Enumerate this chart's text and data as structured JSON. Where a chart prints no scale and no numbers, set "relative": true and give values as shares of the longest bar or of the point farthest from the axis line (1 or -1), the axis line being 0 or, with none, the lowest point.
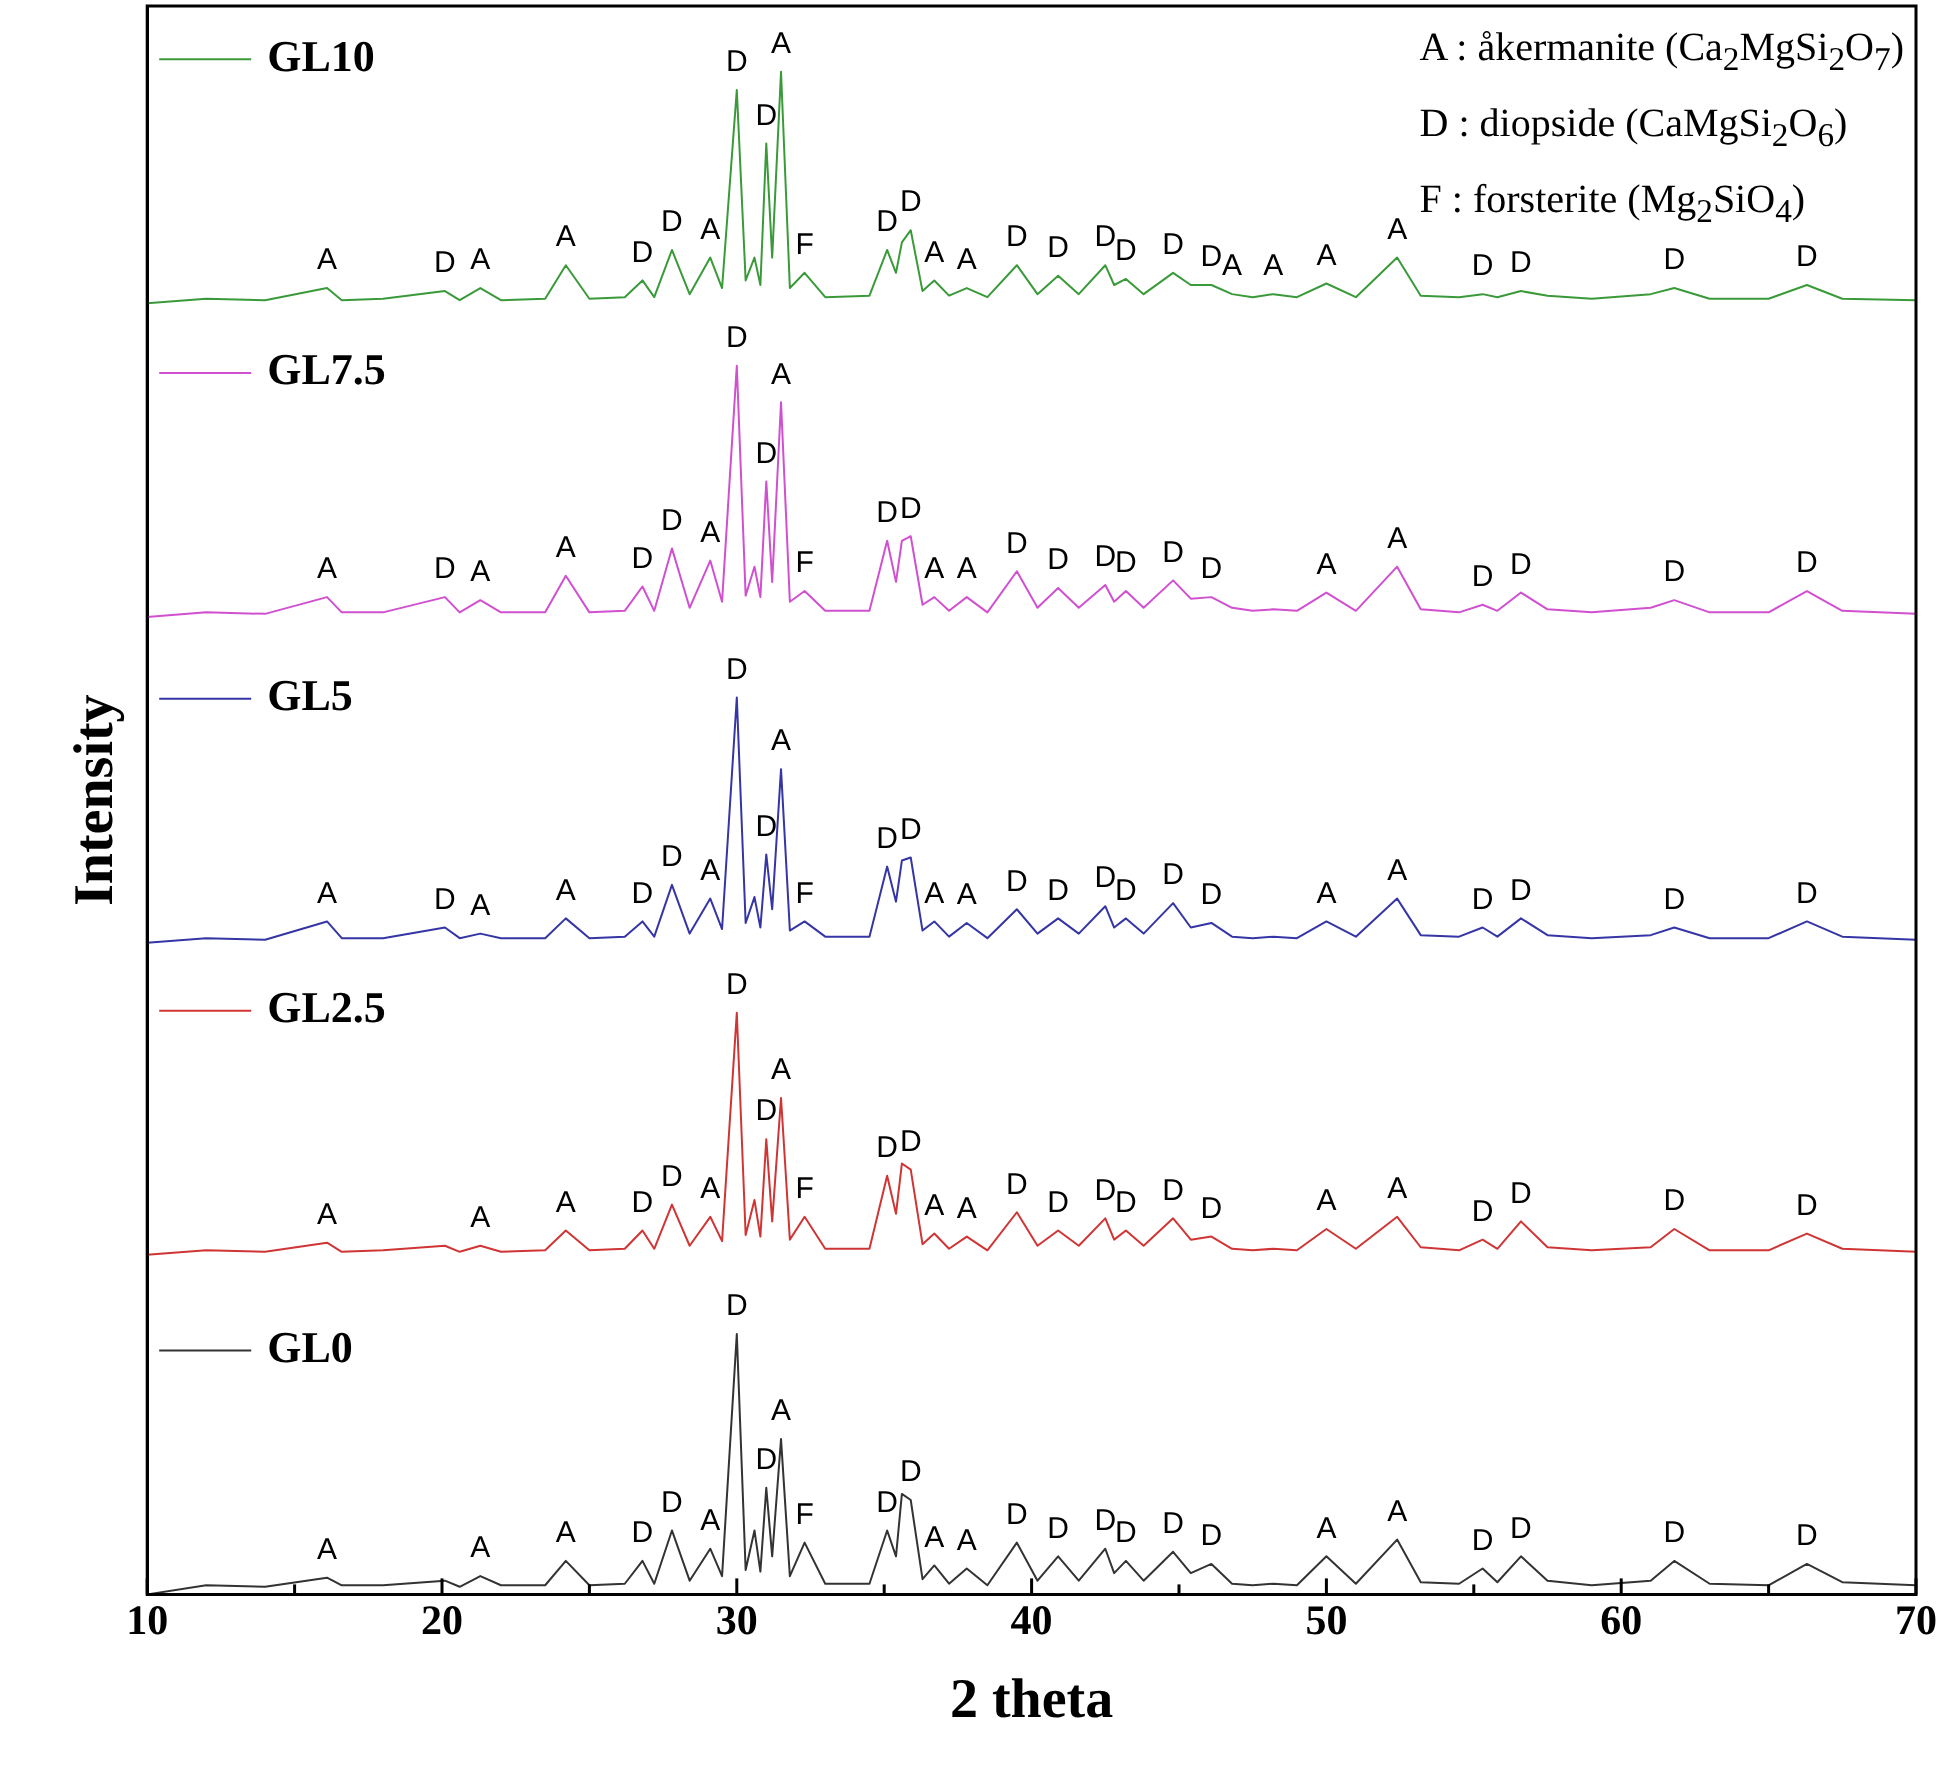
{
  "chart_data": {
    "type": "line",
    "relative": true,
    "xlabel": "2 theta",
    "ylabel": "Intensity",
    "xlim": [
      10,
      70
    ],
    "xticks": [
      10,
      {
        "value": 15,
        "label": null
      },
      20,
      {
        "value": 25,
        "label": null
      },
      30,
      {
        "value": 35,
        "label": null
      },
      40,
      {
        "value": 45,
        "label": null
      },
      50,
      {
        "value": 55,
        "label": null
      },
      60,
      {
        "value": 65,
        "label": null
      },
      70
    ],
    "marker": "none",
    "line_style": "solid",
    "x": [
      10,
      12,
      14,
      16.1,
      16.6,
      18,
      20.1,
      20.6,
      21.3,
      22,
      23.5,
      24.2,
      25,
      26.2,
      26.8,
      27.2,
      27.8,
      28.4,
      29.1,
      29.5,
      30.0,
      30.3,
      30.6,
      30.8,
      31.0,
      31.2,
      31.5,
      31.8,
      32.3,
      33,
      34.5,
      35.1,
      35.4,
      35.6,
      35.9,
      36.3,
      36.7,
      37.2,
      37.8,
      38.5,
      39.5,
      40.2,
      40.9,
      41.6,
      42.5,
      42.8,
      43.2,
      43.8,
      44.8,
      45.4,
      46.1,
      46.8,
      47.5,
      48.2,
      49,
      50.0,
      51,
      52.4,
      53.2,
      54.5,
      55.3,
      55.8,
      56.6,
      57.5,
      59,
      61,
      61.8,
      63,
      65,
      66.3,
      67.5,
      70
    ],
    "series": [
      {
        "name": "GL10",
        "color": "#3a9a3a",
        "values": [
          0.848,
          0.851,
          0.85,
          0.858,
          0.85,
          0.851,
          0.856,
          0.85,
          0.858,
          0.85,
          0.851,
          0.873,
          0.851,
          0.852,
          0.863,
          0.852,
          0.883,
          0.854,
          0.878,
          0.858,
          0.988,
          0.863,
          0.878,
          0.86,
          0.953,
          0.878,
          1.0,
          0.858,
          0.868,
          0.852,
          0.853,
          0.883,
          0.868,
          0.888,
          0.896,
          0.856,
          0.863,
          0.853,
          0.858,
          0.852,
          0.873,
          0.854,
          0.866,
          0.854,
          0.873,
          0.86,
          0.864,
          0.854,
          0.868,
          0.86,
          0.86,
          0.854,
          0.852,
          0.854,
          0.852,
          0.861,
          0.852,
          0.878,
          0.853,
          0.852,
          0.854,
          0.852,
          0.856,
          0.853,
          0.851,
          0.854,
          0.858,
          0.851,
          0.851,
          0.86,
          0.851,
          0.85
        ]
      },
      {
        "name": "GL7.5",
        "color": "#d050d0",
        "values": [
          0.642,
          0.645,
          0.644,
          0.655,
          0.645,
          0.645,
          0.655,
          0.645,
          0.653,
          0.645,
          0.645,
          0.669,
          0.645,
          0.646,
          0.662,
          0.646,
          0.687,
          0.648,
          0.679,
          0.652,
          0.807,
          0.656,
          0.675,
          0.655,
          0.731,
          0.665,
          0.783,
          0.652,
          0.659,
          0.646,
          0.646,
          0.692,
          0.665,
          0.692,
          0.695,
          0.65,
          0.655,
          0.646,
          0.655,
          0.645,
          0.672,
          0.648,
          0.661,
          0.648,
          0.663,
          0.652,
          0.659,
          0.648,
          0.666,
          0.654,
          0.655,
          0.648,
          0.646,
          0.647,
          0.646,
          0.658,
          0.646,
          0.675,
          0.647,
          0.645,
          0.65,
          0.646,
          0.658,
          0.647,
          0.645,
          0.648,
          0.653,
          0.645,
          0.645,
          0.659,
          0.646,
          0.644
        ]
      },
      {
        "name": "GL5",
        "color": "#3535a5",
        "values": [
          0.428,
          0.431,
          0.43,
          0.442,
          0.431,
          0.431,
          0.438,
          0.431,
          0.434,
          0.431,
          0.431,
          0.444,
          0.431,
          0.432,
          0.442,
          0.432,
          0.466,
          0.434,
          0.457,
          0.437,
          0.589,
          0.441,
          0.458,
          0.438,
          0.486,
          0.45,
          0.542,
          0.436,
          0.442,
          0.432,
          0.432,
          0.478,
          0.455,
          0.482,
          0.484,
          0.436,
          0.442,
          0.432,
          0.441,
          0.431,
          0.45,
          0.434,
          0.444,
          0.434,
          0.452,
          0.438,
          0.444,
          0.434,
          0.454,
          0.438,
          0.441,
          0.432,
          0.431,
          0.432,
          0.431,
          0.442,
          0.432,
          0.457,
          0.433,
          0.432,
          0.438,
          0.432,
          0.444,
          0.433,
          0.431,
          0.433,
          0.438,
          0.431,
          0.431,
          0.442,
          0.432,
          0.43
        ]
      },
      {
        "name": "GL2.5",
        "color": "#d03535",
        "values": [
          0.223,
          0.226,
          0.225,
          0.231,
          0.225,
          0.226,
          0.229,
          0.225,
          0.229,
          0.225,
          0.226,
          0.239,
          0.226,
          0.227,
          0.239,
          0.227,
          0.256,
          0.229,
          0.248,
          0.232,
          0.382,
          0.236,
          0.259,
          0.235,
          0.299,
          0.245,
          0.326,
          0.233,
          0.248,
          0.227,
          0.227,
          0.275,
          0.25,
          0.283,
          0.279,
          0.23,
          0.237,
          0.227,
          0.235,
          0.226,
          0.251,
          0.229,
          0.239,
          0.229,
          0.247,
          0.233,
          0.239,
          0.229,
          0.247,
          0.233,
          0.235,
          0.227,
          0.226,
          0.227,
          0.226,
          0.24,
          0.227,
          0.248,
          0.228,
          0.226,
          0.233,
          0.227,
          0.245,
          0.228,
          0.226,
          0.228,
          0.24,
          0.226,
          0.226,
          0.237,
          0.227,
          0.225
        ]
      },
      {
        "name": "GL0",
        "color": "#333333",
        "values": [
          0,
          0.006,
          0.005,
          0.011,
          0.006,
          0.006,
          0.009,
          0.005,
          0.012,
          0.006,
          0.006,
          0.022,
          0.006,
          0.007,
          0.022,
          0.007,
          0.042,
          0.009,
          0.03,
          0.012,
          0.171,
          0.016,
          0.042,
          0.015,
          0.07,
          0.025,
          0.102,
          0.012,
          0.034,
          0.007,
          0.007,
          0.042,
          0.025,
          0.066,
          0.062,
          0.01,
          0.019,
          0.007,
          0.017,
          0.006,
          0.034,
          0.009,
          0.025,
          0.009,
          0.03,
          0.014,
          0.022,
          0.009,
          0.028,
          0.014,
          0.02,
          0.007,
          0.006,
          0.007,
          0.006,
          0.025,
          0.007,
          0.036,
          0.008,
          0.007,
          0.017,
          0.008,
          0.025,
          0.009,
          0.006,
          0.009,
          0.022,
          0.007,
          0.006,
          0.02,
          0.008,
          0.006
        ]
      }
    ],
    "annotations": [
      "A : åkermanite (Ca$_{2}$MgSi$_{2}$O$_{7}$)",
      "D : diopside (CaMgSi$_{2}$O$_{6}$)",
      "F : forsterite (Mg$_{2}$SiO$_{4}$)",
      {
        "text": "A",
        "x": 16.1,
        "y": 0.858
      },
      {
        "text": "D",
        "x": 20.1,
        "y": 0.856
      },
      {
        "text": "A",
        "x": 21.3,
        "y": 0.858
      },
      {
        "text": "A",
        "x": 24.2,
        "y": 0.873
      },
      {
        "text": "D",
        "x": 26.8,
        "y": 0.863
      },
      {
        "text": "D",
        "x": 27.8,
        "y": 0.883
      },
      {
        "text": "A",
        "x": 29.1,
        "y": 0.878
      },
      {
        "text": "D",
        "x": 30.0,
        "y": 0.988
      },
      {
        "text": "A",
        "x": 31.5,
        "y": 1.0
      },
      {
        "text": "D",
        "x": 31.0,
        "y": 0.953
      },
      {
        "text": "F",
        "x": 32.3,
        "y": 0.868
      },
      {
        "text": "D",
        "x": 35.1,
        "y": 0.883
      },
      {
        "text": "D",
        "x": 35.9,
        "y": 0.896
      },
      {
        "text": "A",
        "x": 36.7,
        "y": 0.863
      },
      {
        "text": "A",
        "x": 37.8,
        "y": 0.858
      },
      {
        "text": "D",
        "x": 39.5,
        "y": 0.873
      },
      {
        "text": "D",
        "x": 40.9,
        "y": 0.866
      },
      {
        "text": "D",
        "x": 42.5,
        "y": 0.873
      },
      {
        "text": "D",
        "x": 43.2,
        "y": 0.864
      },
      {
        "text": "D",
        "x": 44.8,
        "y": 0.868
      },
      {
        "text": "D",
        "x": 46.1,
        "y": 0.86
      },
      {
        "text": "A",
        "x": 46.8,
        "y": 0.854
      },
      {
        "text": "A",
        "x": 48.2,
        "y": 0.854
      },
      {
        "text": "A",
        "x": 50.0,
        "y": 0.861
      },
      {
        "text": "A",
        "x": 52.4,
        "y": 0.878
      },
      {
        "text": "D",
        "x": 55.3,
        "y": 0.854
      },
      {
        "text": "D",
        "x": 56.6,
        "y": 0.856
      },
      {
        "text": "D",
        "x": 61.8,
        "y": 0.858
      },
      {
        "text": "D",
        "x": 66.3,
        "y": 0.86
      },
      {
        "text": "A",
        "x": 16.1,
        "y": 0.655
      },
      {
        "text": "D",
        "x": 20.1,
        "y": 0.655
      },
      {
        "text": "A",
        "x": 21.3,
        "y": 0.653
      },
      {
        "text": "A",
        "x": 24.2,
        "y": 0.669
      },
      {
        "text": "D",
        "x": 26.8,
        "y": 0.662
      },
      {
        "text": "D",
        "x": 27.8,
        "y": 0.687
      },
      {
        "text": "A",
        "x": 29.1,
        "y": 0.679
      },
      {
        "text": "D",
        "x": 30.0,
        "y": 0.807
      },
      {
        "text": "A",
        "x": 31.5,
        "y": 0.783
      },
      {
        "text": "D",
        "x": 31.0,
        "y": 0.731
      },
      {
        "text": "F",
        "x": 32.3,
        "y": 0.659
      },
      {
        "text": "D",
        "x": 35.1,
        "y": 0.692
      },
      {
        "text": "D",
        "x": 35.9,
        "y": 0.695
      },
      {
        "text": "A",
        "x": 36.7,
        "y": 0.655
      },
      {
        "text": "A",
        "x": 37.8,
        "y": 0.655
      },
      {
        "text": "D",
        "x": 39.5,
        "y": 0.672
      },
      {
        "text": "D",
        "x": 40.9,
        "y": 0.661
      },
      {
        "text": "D",
        "x": 42.5,
        "y": 0.663
      },
      {
        "text": "D",
        "x": 43.2,
        "y": 0.659
      },
      {
        "text": "D",
        "x": 44.8,
        "y": 0.666
      },
      {
        "text": "D",
        "x": 46.1,
        "y": 0.655
      },
      {
        "text": "A",
        "x": 50.0,
        "y": 0.658
      },
      {
        "text": "A",
        "x": 52.4,
        "y": 0.675
      },
      {
        "text": "D",
        "x": 55.3,
        "y": 0.65
      },
      {
        "text": "D",
        "x": 56.6,
        "y": 0.658
      },
      {
        "text": "D",
        "x": 61.8,
        "y": 0.653
      },
      {
        "text": "D",
        "x": 66.3,
        "y": 0.659
      },
      {
        "text": "A",
        "x": 16.1,
        "y": 0.442
      },
      {
        "text": "D",
        "x": 20.1,
        "y": 0.438
      },
      {
        "text": "A",
        "x": 21.3,
        "y": 0.434
      },
      {
        "text": "A",
        "x": 24.2,
        "y": 0.444
      },
      {
        "text": "D",
        "x": 26.8,
        "y": 0.442
      },
      {
        "text": "D",
        "x": 27.8,
        "y": 0.466
      },
      {
        "text": "A",
        "x": 29.1,
        "y": 0.457
      },
      {
        "text": "D",
        "x": 30.0,
        "y": 0.589
      },
      {
        "text": "A",
        "x": 31.5,
        "y": 0.542
      },
      {
        "text": "D",
        "x": 31.0,
        "y": 0.486
      },
      {
        "text": "F",
        "x": 32.3,
        "y": 0.442
      },
      {
        "text": "D",
        "x": 35.1,
        "y": 0.478
      },
      {
        "text": "D",
        "x": 35.9,
        "y": 0.484
      },
      {
        "text": "A",
        "x": 36.7,
        "y": 0.442
      },
      {
        "text": "A",
        "x": 37.8,
        "y": 0.441
      },
      {
        "text": "D",
        "x": 39.5,
        "y": 0.45
      },
      {
        "text": "D",
        "x": 40.9,
        "y": 0.444
      },
      {
        "text": "D",
        "x": 42.5,
        "y": 0.452
      },
      {
        "text": "D",
        "x": 43.2,
        "y": 0.444
      },
      {
        "text": "D",
        "x": 44.8,
        "y": 0.454
      },
      {
        "text": "D",
        "x": 46.1,
        "y": 0.441
      },
      {
        "text": "A",
        "x": 50.0,
        "y": 0.442
      },
      {
        "text": "A",
        "x": 52.4,
        "y": 0.457
      },
      {
        "text": "D",
        "x": 55.3,
        "y": 0.438
      },
      {
        "text": "D",
        "x": 56.6,
        "y": 0.444
      },
      {
        "text": "D",
        "x": 61.8,
        "y": 0.438
      },
      {
        "text": "D",
        "x": 66.3,
        "y": 0.442
      },
      {
        "text": "A",
        "x": 16.1,
        "y": 0.231
      },
      {
        "text": "A",
        "x": 21.3,
        "y": 0.229
      },
      {
        "text": "A",
        "x": 24.2,
        "y": 0.239
      },
      {
        "text": "D",
        "x": 26.8,
        "y": 0.239
      },
      {
        "text": "D",
        "x": 27.8,
        "y": 0.256
      },
      {
        "text": "A",
        "x": 29.1,
        "y": 0.248
      },
      {
        "text": "D",
        "x": 30.0,
        "y": 0.382
      },
      {
        "text": "A",
        "x": 31.5,
        "y": 0.326
      },
      {
        "text": "D",
        "x": 31.0,
        "y": 0.299
      },
      {
        "text": "F",
        "x": 32.3,
        "y": 0.248
      },
      {
        "text": "D",
        "x": 35.1,
        "y": 0.275
      },
      {
        "text": "D",
        "x": 35.9,
        "y": 0.279
      },
      {
        "text": "A",
        "x": 36.7,
        "y": 0.237
      },
      {
        "text": "A",
        "x": 37.8,
        "y": 0.235
      },
      {
        "text": "D",
        "x": 39.5,
        "y": 0.251
      },
      {
        "text": "D",
        "x": 40.9,
        "y": 0.239
      },
      {
        "text": "D",
        "x": 42.5,
        "y": 0.247
      },
      {
        "text": "D",
        "x": 43.2,
        "y": 0.239
      },
      {
        "text": "D",
        "x": 44.8,
        "y": 0.247
      },
      {
        "text": "D",
        "x": 46.1,
        "y": 0.235
      },
      {
        "text": "A",
        "x": 50.0,
        "y": 0.24
      },
      {
        "text": "A",
        "x": 52.4,
        "y": 0.248
      },
      {
        "text": "D",
        "x": 55.3,
        "y": 0.233
      },
      {
        "text": "D",
        "x": 56.6,
        "y": 0.245
      },
      {
        "text": "D",
        "x": 61.8,
        "y": 0.24
      },
      {
        "text": "D",
        "x": 66.3,
        "y": 0.237
      },
      {
        "text": "A",
        "x": 16.1,
        "y": 0.011
      },
      {
        "text": "A",
        "x": 21.3,
        "y": 0.012
      },
      {
        "text": "A",
        "x": 24.2,
        "y": 0.022
      },
      {
        "text": "D",
        "x": 26.8,
        "y": 0.022
      },
      {
        "text": "D",
        "x": 27.8,
        "y": 0.042
      },
      {
        "text": "A",
        "x": 29.1,
        "y": 0.03
      },
      {
        "text": "D",
        "x": 30.0,
        "y": 0.171
      },
      {
        "text": "A",
        "x": 31.5,
        "y": 0.102
      },
      {
        "text": "D",
        "x": 31.0,
        "y": 0.07
      },
      {
        "text": "F",
        "x": 32.3,
        "y": 0.034
      },
      {
        "text": "D",
        "x": 35.1,
        "y": 0.042
      },
      {
        "text": "D",
        "x": 35.9,
        "y": 0.062
      },
      {
        "text": "A",
        "x": 36.7,
        "y": 0.019
      },
      {
        "text": "A",
        "x": 37.8,
        "y": 0.017
      },
      {
        "text": "D",
        "x": 39.5,
        "y": 0.034
      },
      {
        "text": "D",
        "x": 40.9,
        "y": 0.025
      },
      {
        "text": "D",
        "x": 42.5,
        "y": 0.03
      },
      {
        "text": "D",
        "x": 43.2,
        "y": 0.022
      },
      {
        "text": "D",
        "x": 44.8,
        "y": 0.028
      },
      {
        "text": "D",
        "x": 46.1,
        "y": 0.02
      },
      {
        "text": "A",
        "x": 50.0,
        "y": 0.025
      },
      {
        "text": "A",
        "x": 52.4,
        "y": 0.036
      },
      {
        "text": "D",
        "x": 55.3,
        "y": 0.017
      },
      {
        "text": "D",
        "x": 56.6,
        "y": 0.025
      },
      {
        "text": "D",
        "x": 61.8,
        "y": 0.022
      },
      {
        "text": "D",
        "x": 66.3,
        "y": 0.02
      }
    ],
    "legend": "left"
  }
}
